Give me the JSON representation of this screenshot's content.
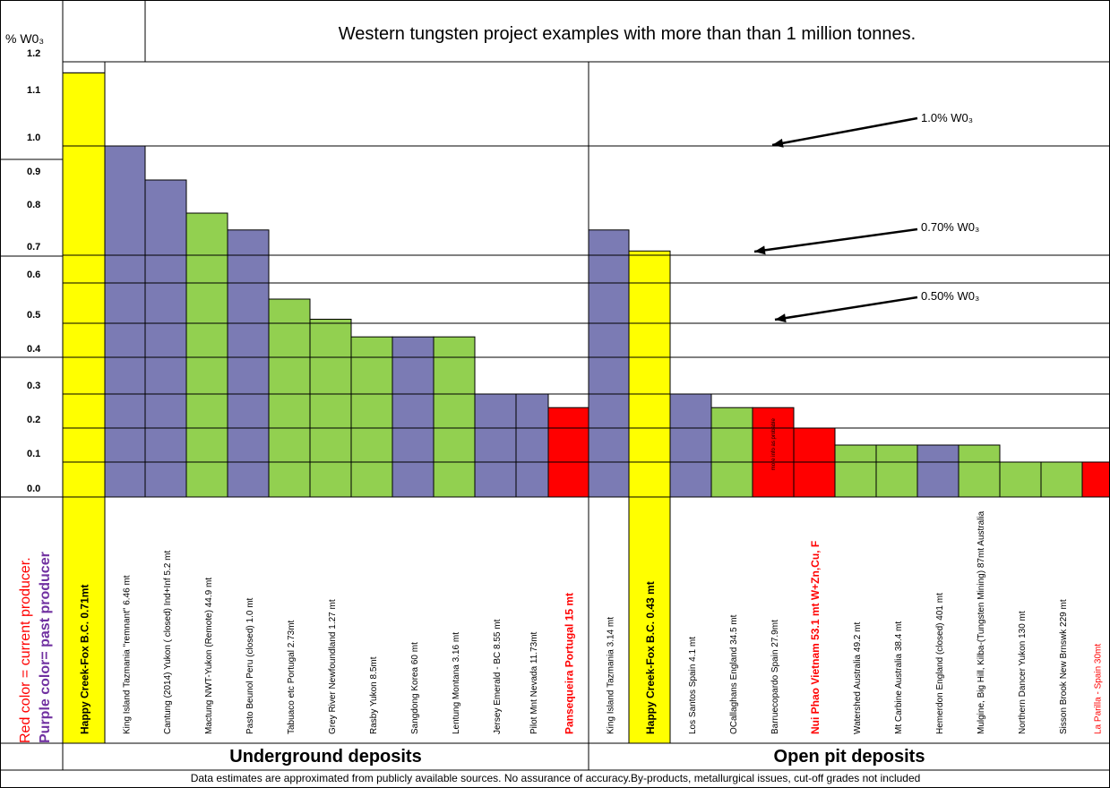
{
  "chart_data": {
    "type": "bar",
    "title": "Western tungsten project examples with more than than 1 million tonnes.",
    "ylabel": "% W0₃",
    "ylim": [
      0,
      1.2
    ],
    "y_tick_labels": [
      {
        "value": 0.0,
        "label": "0.0"
      },
      {
        "value": 0.1,
        "label": "0.1"
      },
      {
        "value": 0.2,
        "label": "0.2"
      },
      {
        "value": 0.3,
        "label": "0.3"
      },
      {
        "value": 0.4,
        "label": "0.4"
      },
      {
        "value": 0.5,
        "label": "0.5"
      },
      {
        "value": 0.6,
        "label": "0.6"
      },
      {
        "value": 0.7,
        "label": "0.7"
      },
      {
        "value": 0.8,
        "label": "0.8"
      },
      {
        "value": 0.9,
        "label": "0.9"
      },
      {
        "value": 1.0,
        "label": "1.0"
      },
      {
        "value": 1.1,
        "label": "1.1"
      },
      {
        "value": 1.2,
        "label": "1.2"
      }
    ],
    "legend": {
      "red": "Red color = current producer.",
      "purple": "Purple color= past producer"
    },
    "sections": [
      {
        "name": "Underground deposits",
        "start": 0,
        "end": 12
      },
      {
        "name": "Open pit deposits",
        "start": 13,
        "end": 25
      }
    ],
    "annotations": [
      {
        "label": "1.0% W0₃",
        "value": 1.0
      },
      {
        "label": "0.70% W0₃",
        "value": 0.7
      },
      {
        "label": "0.50% W0₃",
        "value": 0.5
      }
    ],
    "footnote": "Data estimates are approximated from publicly available sources. No assurance of accuracy.By-products, metallurgical issues, cut-off grades not included",
    "bars": [
      {
        "label": "Happy Creek-Fox  B.C. 0.71mt",
        "value": 1.17,
        "color": "#ffff00",
        "label_color": "#000000",
        "bold": true
      },
      {
        "label": "King Island Tazmania \"remnant\" 6.46 mt",
        "value": 1.0,
        "color": "#7b7bb4",
        "label_color": "#000000",
        "bold": false
      },
      {
        "label": "Cantung (2014) Yukon ( closed) Ind+Inf 5.2 mt",
        "value": 0.9,
        "color": "#7b7bb4",
        "label_color": "#000000",
        "bold": false
      },
      {
        "label": "Mactung NWT-Yukon (Remote) 44.9 mt",
        "value": 0.8,
        "color": "#92d050",
        "label_color": "#000000",
        "bold": false
      },
      {
        "label": "Pasto Beunol Peru (closed) 1.0 mt",
        "value": 0.76,
        "color": "#7b7bb4",
        "label_color": "#000000",
        "bold": false
      },
      {
        "label": "Tabuaco etc Portugal 2.73mt",
        "value": 0.56,
        "color": "#92d050",
        "label_color": "#000000",
        "bold": false
      },
      {
        "label": "Grey River Newfoundland 1.27 mt",
        "value": 0.51,
        "color": "#92d050",
        "label_color": "#000000",
        "bold": false
      },
      {
        "label": "Rasby Yukon 8.5mt",
        "value": 0.46,
        "color": "#92d050",
        "label_color": "#000000",
        "bold": false
      },
      {
        "label": "Sangdong  Korea 60 mt",
        "value": 0.46,
        "color": "#7b7bb4",
        "label_color": "#000000",
        "bold": false
      },
      {
        "label": "Lentung Montana 3.16 mt",
        "value": 0.46,
        "color": "#92d050",
        "label_color": "#000000",
        "bold": false
      },
      {
        "label": "Jersey  Emerald - BC 8.55 mt",
        "value": 0.3,
        "color": "#7b7bb4",
        "label_color": "#000000",
        "bold": false
      },
      {
        "label": "Pilot Mnt  Nevada 11.73mt",
        "value": 0.3,
        "color": "#7b7bb4",
        "label_color": "#000000",
        "bold": false
      },
      {
        "label": "Pansequeira  Portugal 15 mt",
        "value": 0.26,
        "color": "#ff0000",
        "label_color": "#ff0000",
        "bold": true
      },
      {
        "label": "King Island Tazmania 3.14 mt",
        "value": 0.76,
        "color": "#7b7bb4",
        "label_color": "#000000",
        "bold": false
      },
      {
        "label": "Happy Creek-Fox  B.C. 0.43 mt",
        "value": 0.71,
        "color": "#ffff00",
        "label_color": "#000000",
        "bold": true
      },
      {
        "label": "Los Santos  Spain 4.1 mt",
        "value": 0.3,
        "color": "#7b7bb4",
        "label_color": "#000000",
        "bold": false
      },
      {
        "label": "OCallaghans  England 34.5 mt",
        "value": 0.26,
        "color": "#92d050",
        "label_color": "#000000",
        "bold": false
      },
      {
        "label": "Barruecopardo  Spain 27.9mt",
        "value": 0.26,
        "color": "#ff0000",
        "label_color": "#000000",
        "bold": false,
        "inner_text": "more info as probable"
      },
      {
        "label": "Nui Phao  Vietnam 53.1 mt W+Zn,Cu, F",
        "value": 0.2,
        "color": "#ff0000",
        "label_color": "#ff0000",
        "bold": true
      },
      {
        "label": "Watershed  Australia 49.2 mt",
        "value": 0.15,
        "color": "#92d050",
        "label_color": "#000000",
        "bold": false
      },
      {
        "label": "Mt Carbine Australia 38.4 mt",
        "value": 0.15,
        "color": "#92d050",
        "label_color": "#000000",
        "bold": false
      },
      {
        "label": "Hemerdon  England (closed) 401 mt",
        "value": 0.15,
        "color": "#7b7bb4",
        "label_color": "#000000",
        "bold": false
      },
      {
        "label": "Mulgine, Big Hill, Kilba-(Tungsten Mining) 87mt Australia",
        "value": 0.15,
        "color": "#92d050",
        "label_color": "#000000",
        "bold": false
      },
      {
        "label": "Northern Dancer  Yukon 130 mt",
        "value": 0.1,
        "color": "#92d050",
        "label_color": "#000000",
        "bold": false
      },
      {
        "label": "Sisson Brook New Brnswk 229 mt",
        "value": 0.1,
        "color": "#92d050",
        "label_color": "#000000",
        "bold": false
      },
      {
        "label": "La Parilla - Spain 30mt",
        "value": 0.1,
        "color": "#ff0000",
        "label_color": "#ff0000",
        "bold": false
      }
    ]
  }
}
